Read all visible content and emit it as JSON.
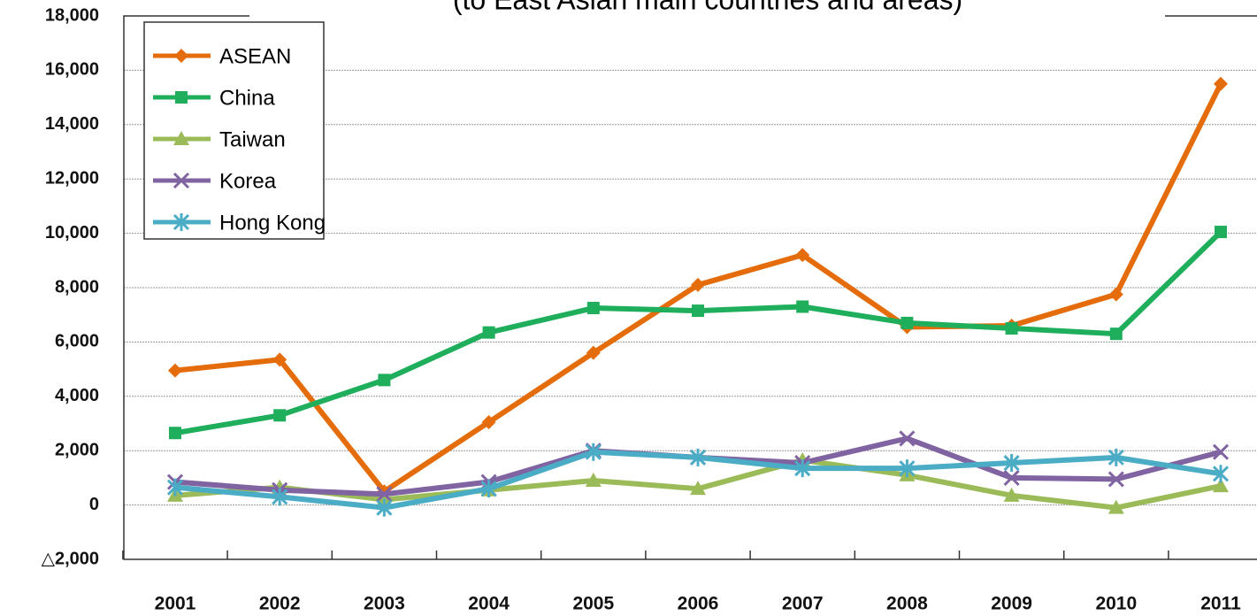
{
  "chart_data": {
    "type": "line",
    "title": "(to East Asian main countries and areas)",
    "categories": [
      "2001",
      "2002",
      "2003",
      "2004",
      "2005",
      "2006",
      "2007",
      "2008",
      "2009",
      "2010",
      "2011"
    ],
    "series": [
      {
        "name": "ASEAN",
        "color": "#e46c0a",
        "marker": "diamond",
        "values": [
          4950,
          5350,
          500,
          3050,
          5600,
          8100,
          9200,
          6550,
          6600,
          7750,
          15500
        ]
      },
      {
        "name": "China",
        "color": "#1fae5c",
        "marker": "square",
        "values": [
          2650,
          3300,
          4600,
          6350,
          7250,
          7150,
          7300,
          6700,
          6500,
          6300,
          10050
        ]
      },
      {
        "name": "Taiwan",
        "color": "#9bbb59",
        "marker": "triangle",
        "values": [
          350,
          650,
          200,
          550,
          900,
          600,
          1650,
          1100,
          350,
          -100,
          700
        ]
      },
      {
        "name": "Korea",
        "color": "#8064a2",
        "marker": "x",
        "values": [
          850,
          550,
          400,
          850,
          2000,
          1750,
          1550,
          2450,
          1000,
          950,
          1950
        ]
      },
      {
        "name": "Hong Kong",
        "color": "#4bacc6",
        "marker": "asterisk",
        "values": [
          650,
          300,
          -100,
          600,
          1950,
          1750,
          1350,
          1350,
          1550,
          1750,
          1150
        ]
      }
    ],
    "ylim": [
      -2000,
      18000
    ],
    "yticks": [
      {
        "value": -2000,
        "label": "△2,000"
      },
      0,
      {
        "value": 2000,
        "label": "2,000"
      },
      {
        "value": 4000,
        "label": "4,000"
      },
      {
        "value": 6000,
        "label": "6,000"
      },
      {
        "value": 8000,
        "label": "8,000"
      },
      {
        "value": 10000,
        "label": "10,000"
      },
      {
        "value": 12000,
        "label": "12,000"
      },
      {
        "value": 14000,
        "label": "14,000"
      },
      {
        "value": 16000,
        "label": "16,000"
      },
      {
        "value": 18000,
        "label": "18,000"
      }
    ],
    "grid": true,
    "legend": "upper left"
  }
}
